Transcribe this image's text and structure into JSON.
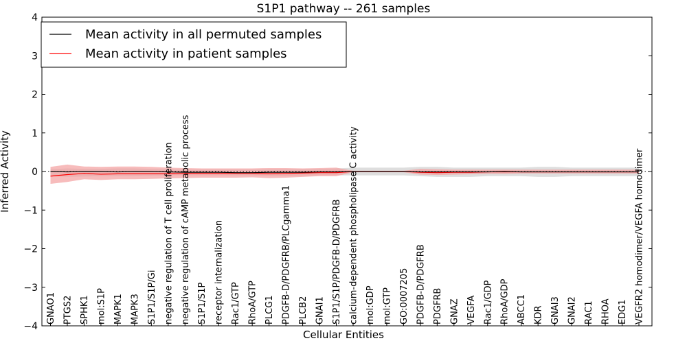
{
  "chart_data": {
    "type": "line",
    "title": "S1P1 pathway -- 261 samples",
    "xlabel": "Cellular Entities",
    "ylabel": "Inferred Activity",
    "ylim": [
      -4,
      4
    ],
    "yticks": [
      4,
      3,
      2,
      1,
      0,
      -1,
      -2,
      -3,
      -4
    ],
    "ytick_labels": [
      "4",
      "3",
      "2",
      "1",
      "0",
      "−1",
      "−2",
      "−3",
      "−4"
    ],
    "categories": [
      "GNAO1",
      "PTGS2",
      "SPHK1",
      "mol:S1P",
      "MAPK1",
      "MAPK3",
      "S1P1/S1P/Gi",
      "negative regulation of T cell proliferation",
      "negative regulation of cAMP metabolic process",
      "S1P1/S1P",
      "receptor internalization",
      "Rac1/GTP",
      "RhoA/GTP",
      "PLCG1",
      "PDGFB-D/PDGFRB/PLCgamma1",
      "PLCB2",
      "GNAI1",
      "S1P1/S1P/PDGFB-D/PDGFRB",
      "calcium-dependent phospholipase C activity",
      "mol:GDP",
      "mol:GTP",
      "GO:0007205",
      "PDGFB-D/PDGFRB",
      "PDGFRB",
      "GNAZ",
      "VEGFA",
      "Rac1/GDP",
      "RhoA/GDP",
      "ABCC1",
      "KDR",
      "GNAI3",
      "GNAI2",
      "RAC1",
      "RHOA",
      "EDG1",
      "VEGFR2 homodimer/VEGFA homodimer"
    ],
    "legend_position": "top-left",
    "series": [
      {
        "name": "Mean activity in all permuted samples",
        "color": "#000000",
        "values": [
          0,
          -0.01,
          0,
          0,
          -0.01,
          0,
          0,
          -0.01,
          -0.02,
          -0.02,
          -0.02,
          -0.03,
          -0.03,
          -0.02,
          -0.02,
          -0.02,
          -0.01,
          -0.01,
          0,
          0,
          0,
          0,
          -0.01,
          -0.01,
          -0.01,
          -0.01,
          -0.01,
          0,
          -0.01,
          -0.01,
          -0.01,
          -0.01,
          -0.01,
          -0.01,
          -0.01,
          -0.01
        ],
        "band_upper": [
          0.06,
          0.08,
          0.07,
          0.07,
          0.08,
          0.08,
          0.07,
          0.06,
          0.05,
          0.05,
          0.05,
          0.05,
          0.05,
          0.06,
          0.06,
          0.06,
          0.07,
          0.08,
          0.1,
          0.1,
          0.1,
          0.1,
          0.12,
          0.12,
          0.1,
          0.1,
          0.1,
          0.1,
          0.1,
          0.12,
          0.12,
          0.1,
          0.1,
          0.1,
          0.1,
          0.1
        ],
        "band_lower": [
          -0.12,
          -0.14,
          -0.13,
          -0.12,
          -0.12,
          -0.12,
          -0.11,
          -0.1,
          -0.1,
          -0.1,
          -0.1,
          -0.1,
          -0.1,
          -0.11,
          -0.12,
          -0.11,
          -0.1,
          -0.1,
          -0.1,
          -0.1,
          -0.1,
          -0.1,
          -0.12,
          -0.14,
          -0.14,
          -0.14,
          -0.12,
          -0.12,
          -0.12,
          -0.14,
          -0.14,
          -0.12,
          -0.12,
          -0.12,
          -0.12,
          -0.12
        ]
      },
      {
        "name": "Mean activity in patient samples",
        "color": "#ff0000",
        "band_color": "#f4a0a0",
        "values": [
          -0.12,
          -0.08,
          -0.05,
          -0.07,
          -0.06,
          -0.06,
          -0.06,
          -0.06,
          -0.05,
          -0.05,
          -0.05,
          -0.05,
          -0.05,
          -0.06,
          -0.05,
          -0.04,
          -0.03,
          -0.03,
          0,
          0,
          0,
          0,
          -0.02,
          -0.03,
          -0.02,
          -0.02,
          -0.01,
          -0.01,
          -0.01,
          -0.01,
          -0.01,
          -0.01,
          -0.01,
          -0.01,
          -0.01,
          -0.01
        ],
        "band_upper": [
          0.12,
          0.18,
          0.13,
          0.12,
          0.13,
          0.13,
          0.12,
          0.1,
          0.09,
          0.08,
          0.08,
          0.08,
          0.08,
          0.09,
          0.09,
          0.08,
          0.09,
          0.1,
          0.02,
          0.02,
          0.02,
          0.02,
          0.07,
          0.06,
          0.05,
          0.05,
          0.05,
          0.05,
          0.05,
          0.05,
          0.05,
          0.05,
          0.05,
          0.05,
          0.05,
          0.05
        ],
        "band_lower": [
          -0.32,
          -0.27,
          -0.2,
          -0.22,
          -0.2,
          -0.2,
          -0.19,
          -0.18,
          -0.17,
          -0.16,
          -0.16,
          -0.16,
          -0.15,
          -0.17,
          -0.16,
          -0.14,
          -0.12,
          -0.12,
          -0.02,
          -0.02,
          -0.02,
          -0.02,
          -0.08,
          -0.09,
          -0.08,
          -0.07,
          -0.06,
          -0.06,
          -0.05,
          -0.05,
          -0.05,
          -0.05,
          -0.05,
          -0.05,
          -0.05,
          -0.05
        ]
      }
    ]
  }
}
